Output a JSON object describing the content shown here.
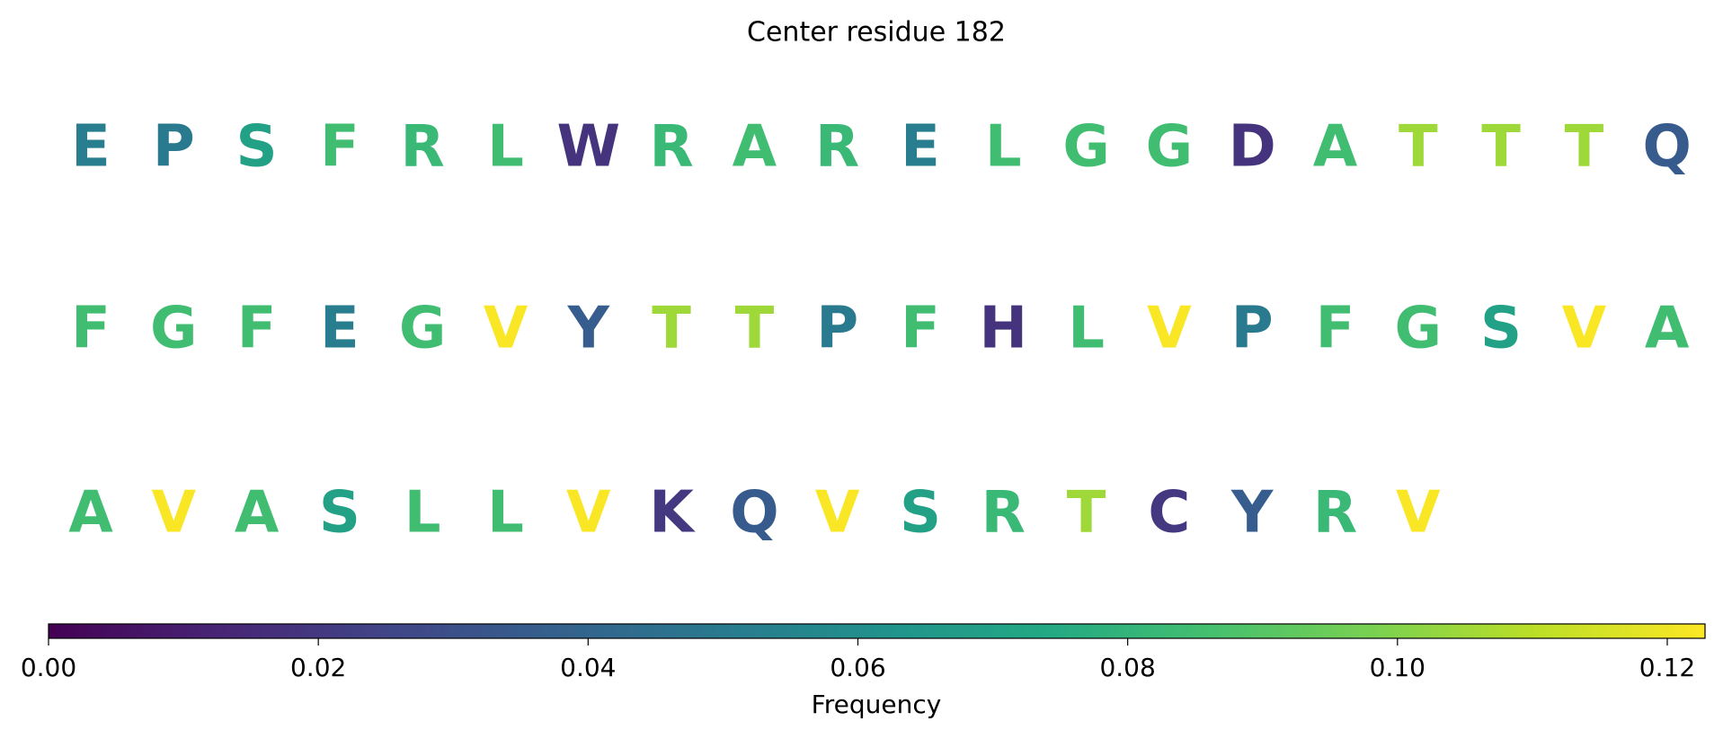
{
  "chart_data": {
    "type": "sequence",
    "title": "Center residue 182",
    "letters": [
      "E",
      "P",
      "S",
      "F",
      "R",
      "L",
      "W",
      "R",
      "A",
      "R",
      "E",
      "L",
      "G",
      "G",
      "D",
      "A",
      "T",
      "T",
      "T",
      "Q",
      "F",
      "G",
      "F",
      "E",
      "G",
      "V",
      "Y",
      "T",
      "T",
      "P",
      "F",
      "H",
      "L",
      "V",
      "P",
      "F",
      "G",
      "S",
      "V",
      "A",
      "A",
      "V",
      "A",
      "S",
      "L",
      "L",
      "V",
      "K",
      "Q",
      "V",
      "S",
      "R",
      "T",
      "C",
      "Y",
      "R",
      "V"
    ],
    "values": [
      0.052,
      0.05,
      0.07,
      0.085,
      0.082,
      0.085,
      0.018,
      0.082,
      0.085,
      0.082,
      0.052,
      0.085,
      0.085,
      0.085,
      0.018,
      0.085,
      0.105,
      0.105,
      0.105,
      0.035,
      0.085,
      0.085,
      0.085,
      0.052,
      0.085,
      0.122,
      0.036,
      0.105,
      0.105,
      0.05,
      0.085,
      0.018,
      0.085,
      0.122,
      0.05,
      0.085,
      0.085,
      0.07,
      0.122,
      0.085,
      0.085,
      0.122,
      0.085,
      0.07,
      0.085,
      0.085,
      0.122,
      0.02,
      0.035,
      0.122,
      0.07,
      0.082,
      0.105,
      0.02,
      0.036,
      0.082,
      0.122
    ],
    "colorbar_label": "Frequency",
    "clim": [
      0,
      0.1228
    ],
    "cticks": [
      {
        "value": 0,
        "label": "0.00"
      },
      0.02,
      0.04,
      0.06,
      0.08,
      {
        "value": 0.1,
        "label": "0.10"
      },
      0.12
    ],
    "colormap": "viridis"
  }
}
